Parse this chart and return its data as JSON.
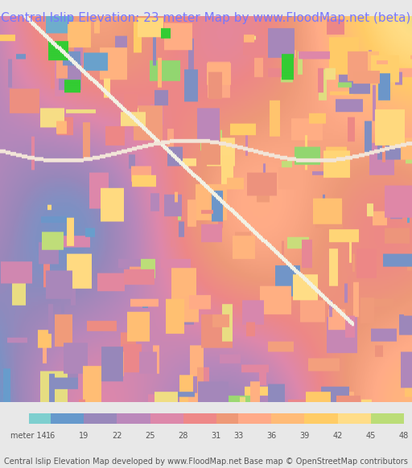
{
  "title": "Central Islip Elevation: 23 meter Map by www.FloodMap.net (beta)",
  "title_color": "#7777ff",
  "title_fontsize": 11,
  "background_color": "#e8e8e8",
  "map_bg_color": "#c8b8d8",
  "colorbar_labels": [
    "meter 14",
    "16",
    "19",
    "22",
    "25",
    "28",
    "31",
    "33",
    "36",
    "39",
    "42",
    "45",
    "48"
  ],
  "colorbar_values": [
    14,
    16,
    19,
    22,
    25,
    28,
    31,
    33,
    36,
    39,
    42,
    45,
    48
  ],
  "colorbar_colors": [
    "#7ecfcf",
    "#6699cc",
    "#9988bb",
    "#bb88bb",
    "#dd88aa",
    "#ee8888",
    "#ee9977",
    "#ffaa88",
    "#ffbb77",
    "#ffcc66",
    "#ffdd88",
    "#bbdd77",
    "#55cc66"
  ],
  "footer_left": "Central Islip Elevation Map developed by www.FloodMap.net",
  "footer_right": "Base map © OpenStreetMap contributors",
  "footer_color": "#555555",
  "footer_fontsize": 7,
  "colorbar_label_fontsize": 7,
  "colorbar_label_color": "#555555",
  "fig_width": 5.12,
  "fig_height": 5.82
}
